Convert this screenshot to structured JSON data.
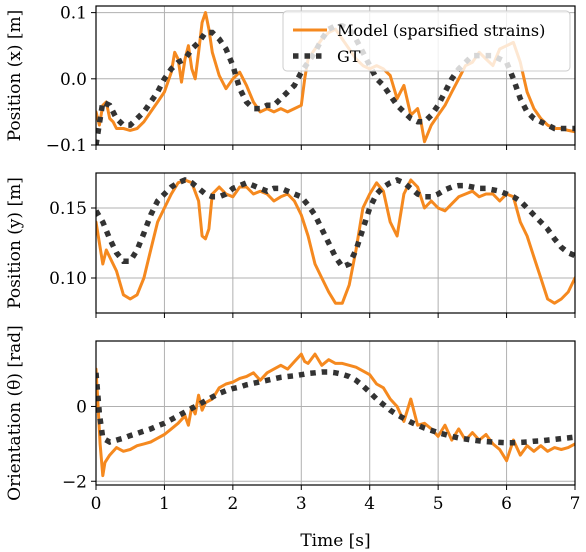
{
  "colors": {
    "model": "#f5891f",
    "gt": "#333333",
    "grid": "#b0b0b0"
  },
  "legend": {
    "placement": "top-right"
  },
  "chart_data": [
    {
      "type": "line",
      "ylabel": "Position (x) [m]",
      "xlabel": "",
      "xlim": [
        0,
        7
      ],
      "ylim": [
        -0.1,
        0.11
      ],
      "grid": true,
      "xticks": [
        "0",
        "1",
        "2",
        "3",
        "4",
        "5",
        "6",
        "7"
      ],
      "yticks": [
        {
          "value": -0.1,
          "label": "−0.1"
        },
        {
          "value": 0.0,
          "label": "0.0"
        },
        {
          "value": 0.1,
          "label": "0.1"
        }
      ],
      "series": [
        {
          "name": "Model (sparsified strains)",
          "style": "solid",
          "color": "#f5891f",
          "x": [
            0,
            0.05,
            0.1,
            0.15,
            0.2,
            0.25,
            0.3,
            0.4,
            0.5,
            0.6,
            0.7,
            0.8,
            0.9,
            1.0,
            1.1,
            1.15,
            1.2,
            1.25,
            1.3,
            1.35,
            1.4,
            1.45,
            1.5,
            1.55,
            1.6,
            1.65,
            1.7,
            1.8,
            1.9,
            2.0,
            2.1,
            2.2,
            2.3,
            2.4,
            2.5,
            2.6,
            2.7,
            2.8,
            2.9,
            3.0,
            3.05,
            3.1,
            3.2,
            3.3,
            3.4,
            3.5,
            3.6,
            3.7,
            3.8,
            3.9,
            4.0,
            4.1,
            4.2,
            4.3,
            4.4,
            4.5,
            4.6,
            4.7,
            4.75,
            4.8,
            4.9,
            5.0,
            5.1,
            5.2,
            5.3,
            5.4,
            5.5,
            5.6,
            5.7,
            5.8,
            5.9,
            6.0,
            6.1,
            6.2,
            6.3,
            6.4,
            6.5,
            6.6,
            6.7,
            6.8,
            6.9,
            7.0
          ],
          "y": [
            -0.05,
            -0.07,
            -0.04,
            -0.035,
            -0.06,
            -0.065,
            -0.075,
            -0.075,
            -0.078,
            -0.075,
            -0.065,
            -0.05,
            -0.035,
            -0.02,
            0.01,
            0.04,
            0.03,
            -0.005,
            0.03,
            0.05,
            0.015,
            0.0,
            0.04,
            0.085,
            0.1,
            0.075,
            0.04,
            0.005,
            -0.015,
            0.0,
            0.01,
            -0.01,
            -0.035,
            -0.05,
            -0.045,
            -0.05,
            -0.045,
            -0.05,
            -0.045,
            -0.04,
            0.0,
            0.03,
            0.045,
            0.06,
            0.07,
            0.075,
            0.06,
            0.045,
            0.03,
            0.02,
            0.015,
            0.02,
            0.015,
            0.005,
            -0.03,
            -0.01,
            -0.055,
            -0.045,
            -0.065,
            -0.095,
            -0.07,
            -0.055,
            -0.04,
            -0.02,
            0.0,
            0.02,
            0.025,
            0.04,
            0.03,
            0.02,
            0.045,
            0.05,
            0.055,
            0.025,
            -0.02,
            -0.045,
            -0.06,
            -0.07,
            -0.075,
            -0.075,
            -0.078,
            -0.08
          ]
        },
        {
          "name": "GT",
          "style": "dotted",
          "color": "#333333",
          "x": [
            0,
            0.1,
            0.2,
            0.3,
            0.4,
            0.5,
            0.6,
            0.7,
            0.8,
            0.9,
            1.0,
            1.1,
            1.2,
            1.3,
            1.4,
            1.5,
            1.6,
            1.7,
            1.8,
            1.9,
            2.0,
            2.1,
            2.2,
            2.3,
            2.4,
            2.5,
            2.6,
            2.7,
            2.8,
            2.9,
            3.0,
            3.1,
            3.2,
            3.3,
            3.4,
            3.5,
            3.6,
            3.7,
            3.8,
            3.9,
            4.0,
            4.1,
            4.2,
            4.3,
            4.4,
            4.5,
            4.6,
            4.7,
            4.8,
            4.9,
            5.0,
            5.1,
            5.2,
            5.3,
            5.4,
            5.5,
            5.6,
            5.7,
            5.8,
            5.9,
            6.0,
            6.1,
            6.2,
            6.3,
            6.4,
            6.5,
            6.6,
            6.7,
            6.8,
            6.9,
            7.0
          ],
          "y": [
            -0.1,
            -0.035,
            -0.04,
            -0.06,
            -0.07,
            -0.07,
            -0.06,
            -0.05,
            -0.035,
            -0.02,
            0.0,
            0.015,
            0.025,
            0.03,
            0.045,
            0.055,
            0.07,
            0.07,
            0.06,
            0.045,
            0.02,
            -0.015,
            -0.035,
            -0.045,
            -0.045,
            -0.04,
            -0.04,
            -0.03,
            -0.02,
            -0.01,
            0.01,
            0.025,
            0.04,
            0.06,
            0.075,
            0.08,
            0.08,
            0.075,
            0.06,
            0.04,
            0.02,
            0.0,
            -0.01,
            -0.025,
            -0.04,
            -0.05,
            -0.06,
            -0.065,
            -0.065,
            -0.055,
            -0.04,
            -0.02,
            0.0,
            0.015,
            0.025,
            0.035,
            0.035,
            0.035,
            0.035,
            0.03,
            0.025,
            0.0,
            -0.03,
            -0.05,
            -0.06,
            -0.065,
            -0.07,
            -0.075,
            -0.075,
            -0.075,
            -0.075
          ]
        }
      ]
    },
    {
      "type": "line",
      "ylabel": "Position (y) [m]",
      "xlabel": "",
      "xlim": [
        0,
        7
      ],
      "ylim": [
        0.075,
        0.175
      ],
      "grid": true,
      "xticks": [
        "0",
        "1",
        "2",
        "3",
        "4",
        "5",
        "6",
        "7"
      ],
      "yticks": [
        {
          "value": 0.1,
          "label": "0.10"
        },
        {
          "value": 0.15,
          "label": "0.15"
        }
      ],
      "series": [
        {
          "name": "Model (sparsified strains)",
          "style": "solid",
          "color": "#f5891f",
          "x": [
            0,
            0.05,
            0.1,
            0.15,
            0.2,
            0.3,
            0.4,
            0.5,
            0.6,
            0.7,
            0.8,
            0.9,
            1.0,
            1.1,
            1.2,
            1.3,
            1.4,
            1.5,
            1.55,
            1.6,
            1.65,
            1.7,
            1.8,
            1.9,
            2.0,
            2.1,
            2.2,
            2.3,
            2.4,
            2.5,
            2.6,
            2.7,
            2.8,
            2.9,
            3.0,
            3.1,
            3.2,
            3.3,
            3.4,
            3.5,
            3.6,
            3.7,
            3.8,
            3.9,
            4.0,
            4.1,
            4.2,
            4.3,
            4.4,
            4.5,
            4.6,
            4.7,
            4.8,
            4.9,
            5.0,
            5.1,
            5.2,
            5.3,
            5.4,
            5.5,
            5.6,
            5.7,
            5.8,
            5.9,
            6.0,
            6.1,
            6.2,
            6.3,
            6.4,
            6.5,
            6.6,
            6.7,
            6.8,
            6.9,
            7.0
          ],
          "y": [
            0.14,
            0.125,
            0.11,
            0.12,
            0.115,
            0.105,
            0.088,
            0.085,
            0.088,
            0.1,
            0.12,
            0.14,
            0.15,
            0.16,
            0.168,
            0.17,
            0.168,
            0.155,
            0.13,
            0.128,
            0.135,
            0.16,
            0.165,
            0.16,
            0.158,
            0.165,
            0.165,
            0.16,
            0.162,
            0.16,
            0.155,
            0.158,
            0.16,
            0.155,
            0.145,
            0.13,
            0.11,
            0.1,
            0.09,
            0.082,
            0.082,
            0.095,
            0.12,
            0.15,
            0.16,
            0.168,
            0.162,
            0.14,
            0.13,
            0.16,
            0.17,
            0.165,
            0.15,
            0.155,
            0.15,
            0.148,
            0.153,
            0.158,
            0.16,
            0.162,
            0.158,
            0.16,
            0.16,
            0.155,
            0.16,
            0.158,
            0.14,
            0.13,
            0.115,
            0.1,
            0.085,
            0.082,
            0.085,
            0.09,
            0.1
          ]
        },
        {
          "name": "GT",
          "style": "dotted",
          "color": "#333333",
          "x": [
            0,
            0.1,
            0.2,
            0.3,
            0.4,
            0.5,
            0.6,
            0.7,
            0.8,
            0.9,
            1.0,
            1.1,
            1.2,
            1.3,
            1.4,
            1.5,
            1.6,
            1.7,
            1.8,
            1.9,
            2.0,
            2.1,
            2.2,
            2.3,
            2.4,
            2.5,
            2.6,
            2.7,
            2.8,
            2.9,
            3.0,
            3.1,
            3.2,
            3.3,
            3.4,
            3.5,
            3.6,
            3.7,
            3.8,
            3.9,
            4.0,
            4.1,
            4.2,
            4.3,
            4.4,
            4.5,
            4.6,
            4.7,
            4.8,
            4.9,
            5.0,
            5.1,
            5.2,
            5.3,
            5.4,
            5.5,
            5.6,
            5.7,
            5.8,
            5.9,
            6.0,
            6.1,
            6.2,
            6.3,
            6.4,
            6.5,
            6.6,
            6.7,
            6.8,
            6.9,
            7.0
          ],
          "y": [
            0.148,
            0.14,
            0.128,
            0.118,
            0.112,
            0.112,
            0.12,
            0.132,
            0.145,
            0.155,
            0.16,
            0.165,
            0.168,
            0.17,
            0.168,
            0.164,
            0.16,
            0.158,
            0.158,
            0.16,
            0.164,
            0.166,
            0.168,
            0.166,
            0.164,
            0.162,
            0.164,
            0.164,
            0.162,
            0.16,
            0.158,
            0.152,
            0.145,
            0.135,
            0.125,
            0.115,
            0.108,
            0.11,
            0.12,
            0.135,
            0.15,
            0.16,
            0.165,
            0.168,
            0.17,
            0.168,
            0.164,
            0.16,
            0.158,
            0.158,
            0.16,
            0.163,
            0.165,
            0.166,
            0.166,
            0.165,
            0.164,
            0.164,
            0.163,
            0.162,
            0.16,
            0.158,
            0.155,
            0.15,
            0.145,
            0.14,
            0.135,
            0.128,
            0.122,
            0.118,
            0.116
          ]
        }
      ]
    },
    {
      "type": "line",
      "ylabel": "Orientation (θ) [rad]",
      "xlabel": "Time [s]",
      "xlim": [
        0,
        7
      ],
      "ylim": [
        -2.1,
        1.75
      ],
      "grid": true,
      "xticks": [
        "0",
        "1",
        "2",
        "3",
        "4",
        "5",
        "6",
        "7"
      ],
      "yticks": [
        {
          "value": -2,
          "label": "−2"
        },
        {
          "value": 0,
          "label": "0"
        }
      ],
      "series": [
        {
          "name": "Model (sparsified strains)",
          "style": "solid",
          "color": "#f5891f",
          "x": [
            0,
            0.03,
            0.06,
            0.1,
            0.13,
            0.2,
            0.3,
            0.4,
            0.5,
            0.6,
            0.7,
            0.8,
            0.9,
            1.0,
            1.1,
            1.2,
            1.3,
            1.35,
            1.4,
            1.45,
            1.5,
            1.55,
            1.6,
            1.7,
            1.8,
            1.9,
            2.0,
            2.1,
            2.2,
            2.3,
            2.4,
            2.5,
            2.6,
            2.7,
            2.8,
            2.9,
            3.0,
            3.05,
            3.1,
            3.2,
            3.3,
            3.4,
            3.5,
            3.6,
            3.7,
            3.8,
            3.9,
            4.0,
            4.1,
            4.2,
            4.3,
            4.4,
            4.5,
            4.6,
            4.7,
            4.8,
            4.9,
            5.0,
            5.1,
            5.2,
            5.3,
            5.4,
            5.5,
            5.6,
            5.7,
            5.8,
            5.9,
            6.0,
            6.1,
            6.2,
            6.3,
            6.4,
            6.5,
            6.6,
            6.7,
            6.8,
            6.9,
            7.0
          ],
          "y": [
            1.0,
            0.0,
            -1.0,
            -1.85,
            -1.5,
            -1.3,
            -1.1,
            -1.2,
            -1.15,
            -1.05,
            -1.0,
            -0.95,
            -0.85,
            -0.75,
            -0.6,
            -0.45,
            -0.25,
            -0.5,
            0.0,
            -0.2,
            0.3,
            -0.1,
            0.1,
            0.2,
            0.5,
            0.6,
            0.65,
            0.75,
            0.8,
            0.9,
            0.7,
            0.9,
            1.0,
            1.1,
            1.0,
            1.2,
            1.4,
            1.2,
            1.15,
            1.4,
            1.1,
            1.25,
            1.15,
            1.15,
            1.1,
            1.05,
            0.95,
            0.85,
            0.6,
            0.5,
            0.2,
            0.0,
            -0.4,
            0.2,
            -0.5,
            -0.45,
            -0.6,
            -0.8,
            -0.5,
            -0.9,
            -0.6,
            -0.9,
            -0.7,
            -0.9,
            -0.75,
            -1.0,
            -1.15,
            -1.45,
            -0.9,
            -1.3,
            -1.05,
            -1.2,
            -1.05,
            -1.2,
            -1.1,
            -1.15,
            -1.1,
            -1.0
          ]
        },
        {
          "name": "GT",
          "style": "dotted",
          "color": "#333333",
          "x": [
            0,
            0.05,
            0.1,
            0.2,
            0.3,
            0.4,
            0.5,
            0.6,
            0.7,
            0.8,
            0.9,
            1.0,
            1.1,
            1.2,
            1.3,
            1.4,
            1.5,
            1.6,
            1.7,
            1.8,
            1.9,
            2.0,
            2.1,
            2.2,
            2.3,
            2.4,
            2.5,
            2.6,
            2.7,
            2.8,
            2.9,
            3.0,
            3.1,
            3.2,
            3.3,
            3.4,
            3.5,
            3.6,
            3.7,
            3.8,
            3.9,
            4.0,
            4.1,
            4.2,
            4.3,
            4.4,
            4.5,
            4.6,
            4.7,
            4.8,
            4.9,
            5.0,
            5.1,
            5.2,
            5.3,
            5.4,
            5.5,
            5.6,
            5.7,
            5.8,
            5.9,
            6.0,
            6.1,
            6.2,
            6.3,
            6.4,
            6.5,
            6.6,
            6.7,
            6.8,
            6.9,
            7.0
          ],
          "y": [
            0.9,
            -0.2,
            -0.85,
            -0.95,
            -0.9,
            -0.85,
            -0.78,
            -0.72,
            -0.66,
            -0.6,
            -0.52,
            -0.45,
            -0.35,
            -0.25,
            -0.15,
            -0.05,
            0.05,
            0.15,
            0.25,
            0.35,
            0.42,
            0.48,
            0.52,
            0.58,
            0.62,
            0.66,
            0.7,
            0.74,
            0.78,
            0.8,
            0.82,
            0.85,
            0.88,
            0.9,
            0.92,
            0.92,
            0.9,
            0.86,
            0.8,
            0.7,
            0.55,
            0.38,
            0.2,
            0.05,
            -0.1,
            -0.22,
            -0.32,
            -0.42,
            -0.5,
            -0.58,
            -0.64,
            -0.7,
            -0.75,
            -0.8,
            -0.84,
            -0.87,
            -0.9,
            -0.92,
            -0.94,
            -0.95,
            -0.96,
            -0.97,
            -0.97,
            -0.96,
            -0.95,
            -0.93,
            -0.92,
            -0.9,
            -0.88,
            -0.86,
            -0.84,
            -0.82
          ]
        }
      ]
    }
  ]
}
